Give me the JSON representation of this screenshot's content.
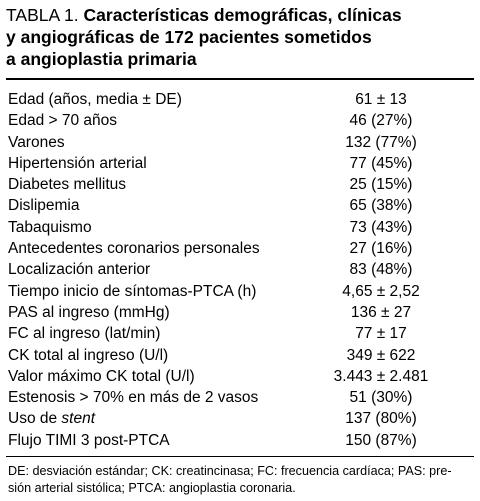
{
  "table": {
    "label": "TABLA 1.",
    "title_lines": [
      "Características demográficas, clínicas",
      "y angiográficas de 172 pacientes sometidos",
      "a angioplastia primaria"
    ],
    "rows": [
      {
        "name": "Edad (años, media ± DE)",
        "value": "61 ± 13"
      },
      {
        "name": "Edad > 70 años",
        "value": "46 (27%)"
      },
      {
        "name": "Varones",
        "value": "132 (77%)"
      },
      {
        "name": "Hipertensión arterial",
        "value": "77 (45%)"
      },
      {
        "name": "Diabetes mellitus",
        "value": "25 (15%)"
      },
      {
        "name": "Dislipemia",
        "value": "65 (38%)"
      },
      {
        "name": "Tabaquismo",
        "value": "73 (43%)"
      },
      {
        "name": "Antecedentes coronarios personales",
        "value": "27 (16%)"
      },
      {
        "name": "Localización anterior",
        "value": "83 (48%)"
      },
      {
        "name": "Tiempo inicio de síntomas-PTCA (h)",
        "value": "4,65 ± 2,52"
      },
      {
        "name": "PAS al ingreso (mmHg)",
        "value": "136 ± 27"
      },
      {
        "name": "FC al ingreso (lat/min)",
        "value": "77 ± 17"
      },
      {
        "name": "CK total al ingreso (U/l)",
        "value": "349 ± 622"
      },
      {
        "name": "Valor máximo CK total (U/l)",
        "value": "3.443 ± 2.481"
      },
      {
        "name": "Estenosis > 70% en más de 2 vasos",
        "value": "51 (30%)"
      },
      {
        "name_prefix": "Uso de ",
        "name_italic": "stent",
        "value": "137 (80%)"
      },
      {
        "name": "Flujo TIMI 3 post-PTCA",
        "value": "150 (87%)"
      }
    ],
    "footnote_lines": [
      "DE: desviación estándar; CK: creatincinasa; FC: frecuencia cardíaca; PAS: pre-",
      "sión arterial sistólica; PTCA: angioplastia coronaria."
    ]
  }
}
